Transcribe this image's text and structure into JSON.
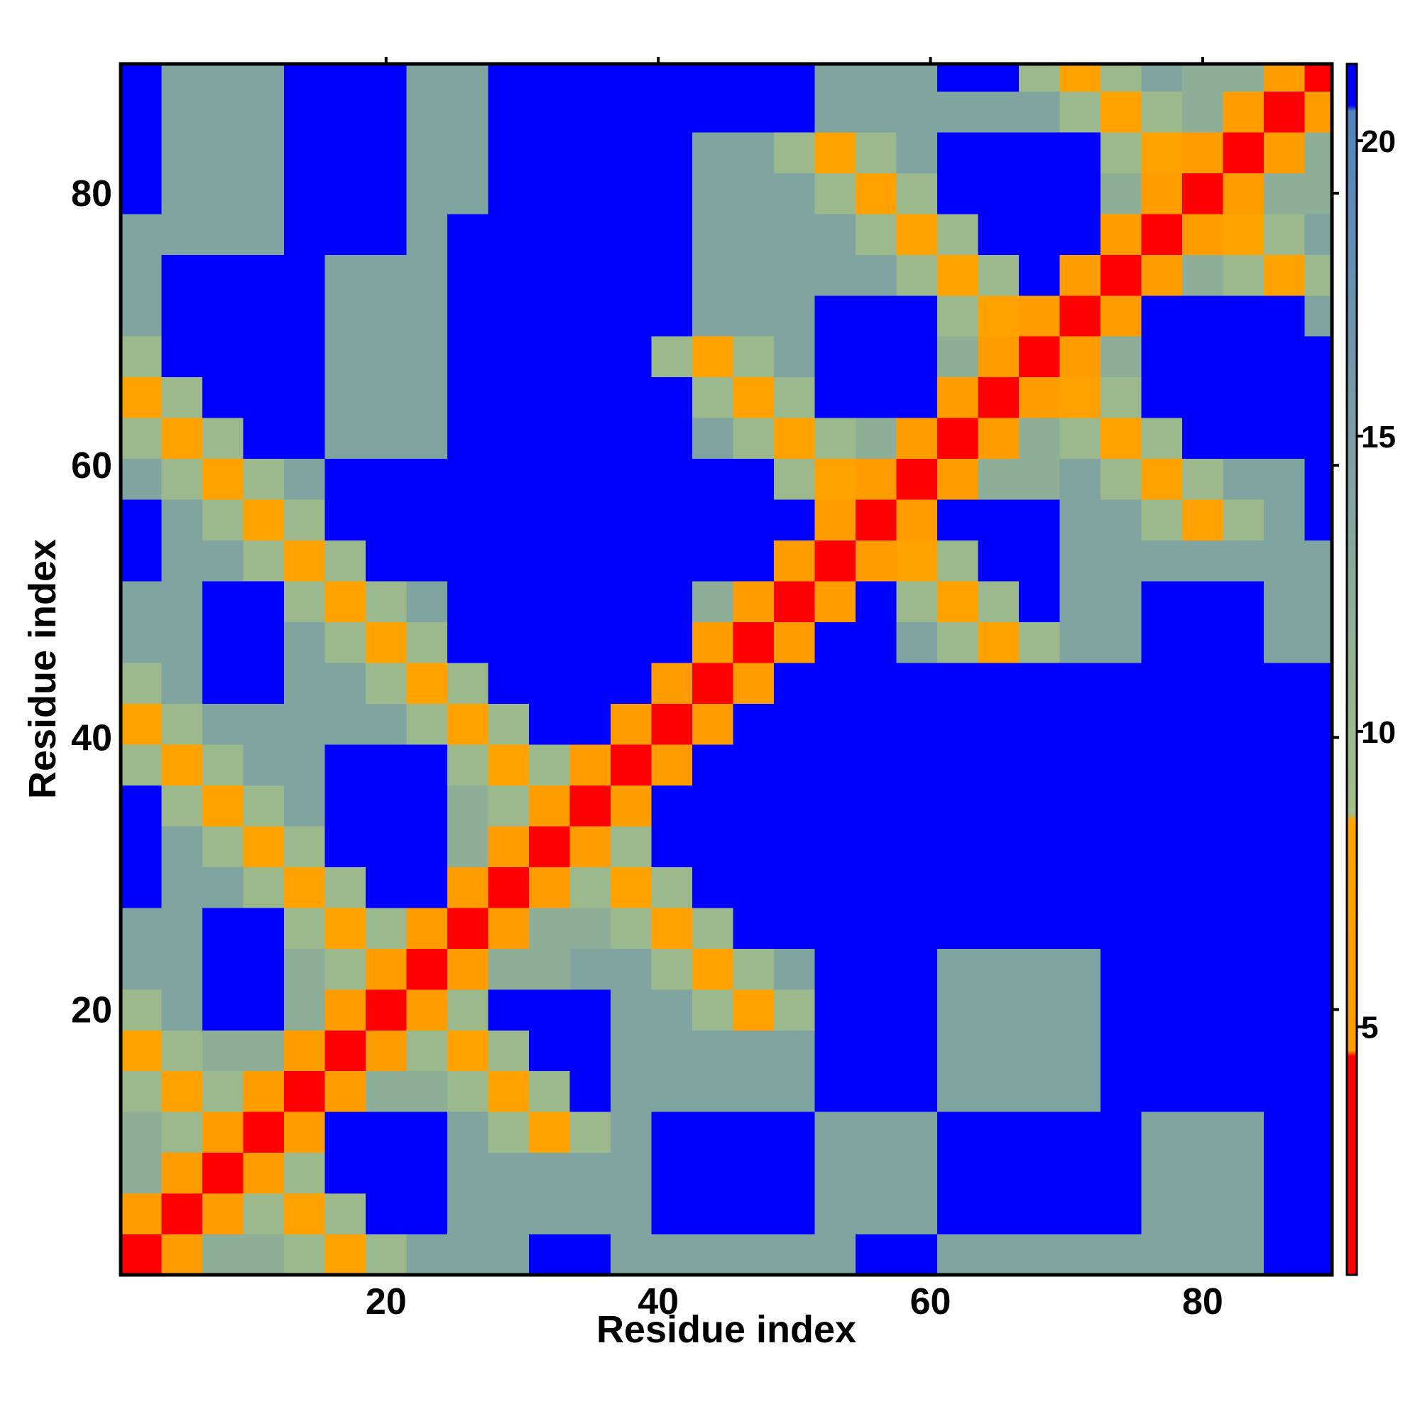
{
  "chart_data": {
    "type": "heatmap",
    "xlabel": "Residue index",
    "ylabel": "Residue index",
    "xlim": [
      0.5,
      89.5
    ],
    "ylim": [
      0.5,
      89.5
    ],
    "xticks": [
      20,
      40,
      60,
      80
    ],
    "yticks": [
      20,
      40,
      60,
      80
    ],
    "xbins": [
      0.5,
      3.5,
      6.5,
      9.5,
      12.5,
      15.5,
      18.5,
      21.5,
      24.5,
      27.5,
      30.5,
      33.5,
      36.5,
      39.5,
      42.5,
      45.5,
      48.5,
      51.5,
      54.5,
      57.5,
      60.5,
      63.5,
      66.5,
      69.5,
      72.5,
      75.5,
      78.5,
      81.5,
      84.5,
      87.5,
      89.5
    ],
    "ybins": [
      0.5,
      3.5,
      6.5,
      9.5,
      12.5,
      15.5,
      18.5,
      21.5,
      24.5,
      27.5,
      30.5,
      33.5,
      36.5,
      39.5,
      42.5,
      45.5,
      48.5,
      51.5,
      54.5,
      57.5,
      60.5,
      63.5,
      66.5,
      69.5,
      72.5,
      75.5,
      78.5,
      81.5,
      84.5,
      87.5,
      89.5
    ],
    "clim": [
      0.8,
      21.3
    ],
    "cticks": [
      5,
      10,
      15,
      20
    ],
    "colorscale": [
      [
        0.8,
        "#ff0000"
      ],
      [
        4.5,
        "#ff0000"
      ],
      [
        4.6,
        "#ff9c00"
      ],
      [
        8.5,
        "#ffa500"
      ],
      [
        8.6,
        "#a6bf86"
      ],
      [
        20.5,
        "#5383c0"
      ],
      [
        20.6,
        "#0000ff"
      ],
      [
        21.3,
        "#0000ff"
      ]
    ],
    "z": [
      [
        2,
        5,
        12,
        12,
        10,
        7,
        10,
        14,
        14,
        14,
        21,
        21,
        14,
        14,
        14,
        14,
        14,
        14,
        21,
        21,
        14,
        14,
        14,
        14,
        14,
        14,
        14,
        14,
        21,
        21
      ],
      [
        5,
        2,
        5,
        10,
        7,
        10,
        21,
        21,
        14,
        14,
        14,
        14,
        14,
        21,
        21,
        21,
        21,
        14,
        14,
        14,
        21,
        21,
        21,
        21,
        21,
        14,
        14,
        14,
        21,
        21
      ],
      [
        12,
        5,
        2,
        5,
        10,
        21,
        21,
        21,
        14,
        14,
        14,
        14,
        14,
        21,
        21,
        21,
        21,
        14,
        14,
        14,
        21,
        21,
        21,
        21,
        21,
        14,
        14,
        14,
        21,
        21
      ],
      [
        12,
        10,
        5,
        2,
        5,
        21,
        21,
        21,
        14,
        10,
        7,
        10,
        14,
        21,
        21,
        21,
        21,
        14,
        14,
        14,
        21,
        21,
        21,
        21,
        21,
        14,
        14,
        14,
        21,
        21
      ],
      [
        10,
        7,
        10,
        5,
        2,
        5,
        12,
        12,
        10,
        7,
        10,
        21,
        14,
        14,
        14,
        14,
        14,
        21,
        21,
        21,
        14,
        14,
        14,
        14,
        21,
        21,
        21,
        21,
        21,
        21
      ],
      [
        7,
        10,
        12,
        12,
        5,
        2,
        5,
        10,
        7,
        10,
        21,
        21,
        14,
        14,
        14,
        14,
        14,
        21,
        21,
        21,
        14,
        14,
        14,
        14,
        21,
        21,
        21,
        21,
        21,
        21
      ],
      [
        10,
        14,
        21,
        21,
        12,
        5,
        2,
        5,
        10,
        21,
        21,
        21,
        14,
        14,
        10,
        7,
        10,
        21,
        21,
        21,
        14,
        14,
        14,
        14,
        21,
        21,
        21,
        21,
        21,
        21
      ],
      [
        14,
        14,
        21,
        21,
        12,
        10,
        5,
        2,
        5,
        12,
        12,
        14,
        14,
        10,
        7,
        10,
        14,
        21,
        21,
        21,
        14,
        14,
        14,
        14,
        21,
        21,
        21,
        21,
        21,
        21
      ],
      [
        14,
        14,
        21,
        21,
        10,
        7,
        10,
        5,
        2,
        5,
        12,
        12,
        10,
        7,
        10,
        21,
        21,
        21,
        21,
        21,
        21,
        21,
        21,
        21,
        21,
        21,
        21,
        21,
        21,
        21
      ],
      [
        21,
        14,
        14,
        10,
        7,
        10,
        21,
        21,
        5,
        2,
        5,
        10,
        7,
        10,
        21,
        21,
        21,
        21,
        21,
        21,
        21,
        21,
        21,
        21,
        21,
        21,
        21,
        21,
        21,
        21
      ],
      [
        21,
        14,
        10,
        7,
        10,
        21,
        21,
        21,
        12,
        5,
        2,
        5,
        10,
        21,
        21,
        21,
        21,
        21,
        21,
        21,
        21,
        21,
        21,
        21,
        21,
        21,
        21,
        21,
        21,
        21
      ],
      [
        21,
        10,
        7,
        10,
        14,
        21,
        21,
        21,
        12,
        10,
        5,
        2,
        5,
        21,
        21,
        21,
        21,
        21,
        21,
        21,
        21,
        21,
        21,
        21,
        21,
        21,
        21,
        21,
        21,
        21
      ],
      [
        10,
        7,
        10,
        14,
        14,
        21,
        21,
        21,
        10,
        7,
        10,
        5,
        2,
        5,
        21,
        21,
        21,
        21,
        21,
        21,
        21,
        21,
        21,
        21,
        21,
        21,
        21,
        21,
        21,
        21
      ],
      [
        7,
        10,
        14,
        14,
        14,
        14,
        14,
        10,
        7,
        10,
        21,
        21,
        5,
        2,
        5,
        21,
        21,
        21,
        21,
        21,
        21,
        21,
        21,
        21,
        21,
        21,
        21,
        21,
        21,
        21
      ],
      [
        10,
        14,
        21,
        21,
        14,
        14,
        10,
        7,
        10,
        21,
        21,
        21,
        21,
        5,
        2,
        5,
        21,
        21,
        21,
        21,
        21,
        21,
        21,
        21,
        21,
        21,
        21,
        21,
        21,
        21
      ],
      [
        14,
        14,
        21,
        21,
        14,
        10,
        7,
        10,
        21,
        21,
        21,
        21,
        21,
        21,
        5,
        2,
        5,
        21,
        21,
        14,
        10,
        7,
        10,
        14,
        14,
        21,
        21,
        21,
        14,
        14
      ],
      [
        14,
        14,
        21,
        21,
        10,
        7,
        10,
        14,
        21,
        21,
        21,
        21,
        21,
        21,
        12,
        5,
        2,
        5,
        21,
        10,
        7,
        10,
        21,
        14,
        14,
        21,
        21,
        21,
        14,
        14
      ],
      [
        21,
        14,
        14,
        10,
        7,
        10,
        21,
        21,
        21,
        21,
        21,
        21,
        21,
        21,
        21,
        21,
        5,
        2,
        5,
        7,
        10,
        21,
        21,
        14,
        14,
        14,
        14,
        14,
        14,
        14
      ],
      [
        21,
        14,
        10,
        7,
        10,
        21,
        21,
        21,
        21,
        21,
        21,
        21,
        21,
        21,
        21,
        21,
        21,
        5,
        2,
        5,
        21,
        21,
        21,
        14,
        14,
        10,
        7,
        10,
        14,
        21
      ],
      [
        14,
        10,
        7,
        10,
        14,
        21,
        21,
        21,
        21,
        21,
        21,
        21,
        21,
        21,
        21,
        21,
        10,
        7,
        5,
        2,
        5,
        12,
        12,
        14,
        10,
        7,
        10,
        14,
        14,
        21
      ],
      [
        10,
        7,
        10,
        21,
        21,
        14,
        14,
        14,
        21,
        21,
        21,
        21,
        21,
        21,
        14,
        10,
        7,
        10,
        12,
        5,
        2,
        5,
        12,
        10,
        7,
        10,
        21,
        21,
        21,
        21
      ],
      [
        7,
        10,
        21,
        21,
        21,
        14,
        14,
        14,
        21,
        21,
        21,
        21,
        21,
        21,
        10,
        7,
        10,
        21,
        21,
        21,
        5,
        2,
        5,
        7,
        10,
        21,
        21,
        21,
        21,
        21
      ],
      [
        10,
        21,
        21,
        21,
        21,
        14,
        14,
        14,
        21,
        21,
        21,
        21,
        21,
        10,
        7,
        10,
        14,
        21,
        21,
        21,
        12,
        5,
        2,
        5,
        12,
        21,
        21,
        21,
        21,
        21
      ],
      [
        14,
        21,
        21,
        21,
        21,
        14,
        14,
        14,
        21,
        21,
        21,
        21,
        21,
        21,
        14,
        14,
        14,
        21,
        21,
        21,
        10,
        7,
        5,
        2,
        5,
        21,
        21,
        21,
        21,
        14
      ],
      [
        14,
        21,
        21,
        21,
        21,
        14,
        14,
        14,
        21,
        21,
        21,
        21,
        21,
        21,
        14,
        14,
        14,
        14,
        14,
        10,
        7,
        10,
        21,
        5,
        2,
        5,
        12,
        10,
        7,
        10
      ],
      [
        14,
        14,
        14,
        14,
        21,
        21,
        21,
        14,
        21,
        21,
        21,
        21,
        21,
        21,
        14,
        14,
        14,
        14,
        10,
        7,
        10,
        21,
        21,
        21,
        5,
        2,
        5,
        7,
        10,
        14
      ],
      [
        21,
        14,
        14,
        14,
        21,
        21,
        21,
        14,
        14,
        21,
        21,
        21,
        21,
        21,
        14,
        14,
        14,
        10,
        7,
        10,
        21,
        21,
        21,
        21,
        12,
        5,
        2,
        5,
        12,
        12
      ],
      [
        21,
        14,
        14,
        14,
        21,
        21,
        21,
        14,
        14,
        21,
        21,
        21,
        21,
        21,
        14,
        14,
        10,
        7,
        10,
        14,
        21,
        21,
        21,
        21,
        10,
        7,
        5,
        2,
        5,
        12
      ],
      [
        21,
        14,
        14,
        14,
        21,
        21,
        21,
        14,
        14,
        21,
        21,
        21,
        21,
        21,
        21,
        21,
        21,
        14,
        14,
        14,
        14,
        14,
        14,
        10,
        7,
        10,
        12,
        5,
        2,
        5
      ],
      [
        21,
        14,
        14,
        14,
        21,
        21,
        21,
        14,
        14,
        21,
        21,
        21,
        21,
        21,
        21,
        21,
        21,
        14,
        14,
        14,
        21,
        21,
        10,
        7,
        10,
        14,
        12,
        12,
        5,
        2
      ]
    ]
  }
}
